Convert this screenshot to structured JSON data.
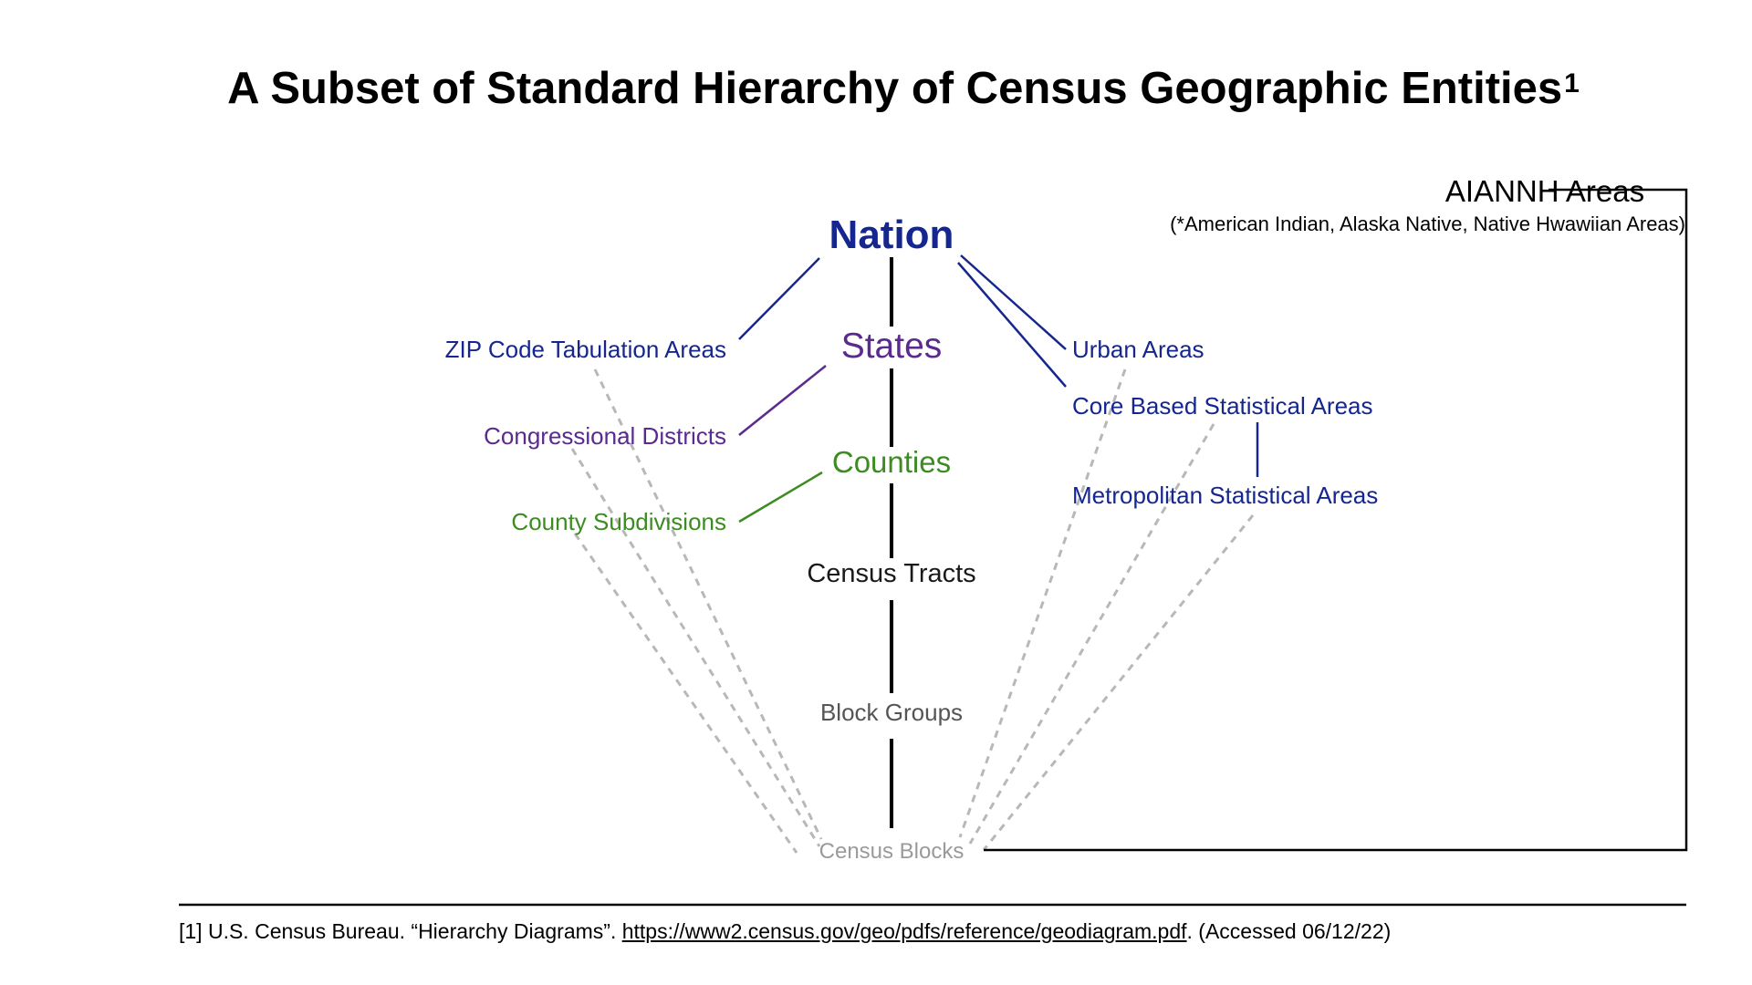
{
  "title": {
    "text": "A Subset of Standard Hierarchy of Census Geographic Entities",
    "superscript": "1"
  },
  "hierarchy": {
    "spine": [
      "Nation",
      "States",
      "Counties",
      "Census Tracts",
      "Block Groups",
      "Census Blocks"
    ],
    "left_branches": [
      "ZIP Code Tabulation Areas",
      "Congressional Districts",
      "County Subdivisions"
    ],
    "right_branches": [
      "Urban Areas",
      "Core Based Statistical Areas",
      "Metropolitan Statistical Areas"
    ],
    "aiannh": {
      "label": "AIANNH Areas",
      "note": "(*American Indian, Alaska Native, Native Hwawiian Areas)"
    }
  },
  "footnote": {
    "prefix": "[1] U.S. Census Bureau. “Hierarchy Diagrams”. ",
    "link": "https://www2.census.gov/geo/pdfs/reference/geodiagram.pdf",
    "suffix": ". (Accessed 06/12/22)"
  },
  "colors": {
    "nation_level": "#15278f",
    "state_level": "#5b2a8f",
    "county_level": "#3c8c22",
    "tract_level": "#1a1a1a",
    "block_group_level": "#555555",
    "block_level": "#9a9a9a",
    "dashed_connector": "#b8b8b8"
  }
}
